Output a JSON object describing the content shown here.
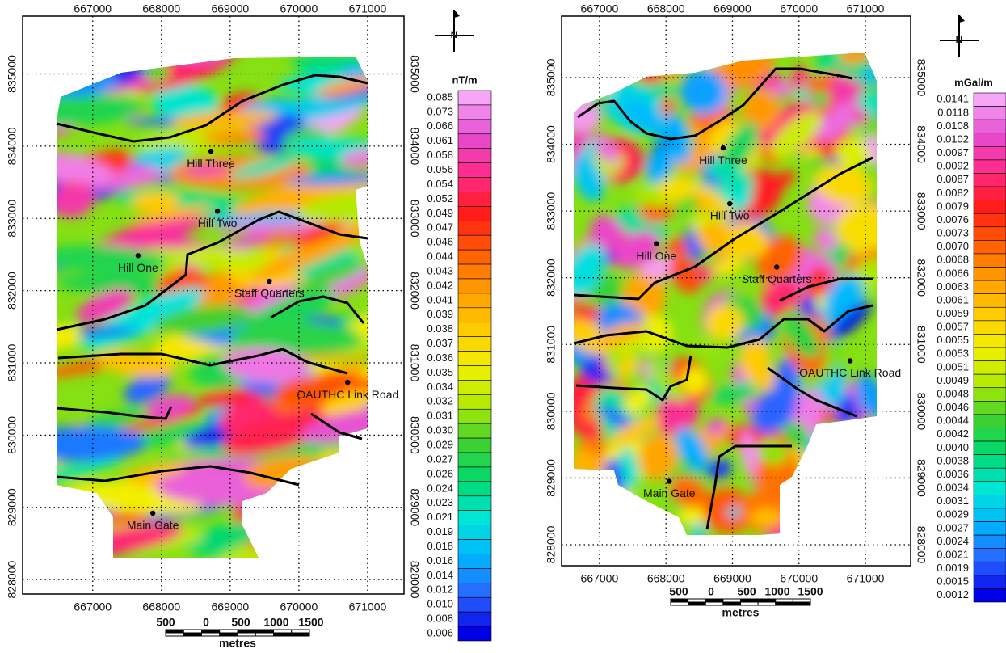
{
  "panels": [
    {
      "unit": "nT/m",
      "north_label": "N",
      "xlim": [
        665980,
        671530
      ],
      "ylim": [
        827800,
        835800
      ],
      "xticks": [
        667000,
        668000,
        669000,
        670000,
        671000
      ],
      "yticks": [
        828000,
        829000,
        830000,
        831000,
        832000,
        833000,
        834000,
        835000
      ],
      "legend_labels": [
        "0.085",
        "0.073",
        "0.066",
        "0.061",
        "0.058",
        "0.056",
        "0.054",
        "0.052",
        "0.049",
        "0.047",
        "0.046",
        "0.044",
        "0.043",
        "0.042",
        "0.041",
        "0.039",
        "0.038",
        "0.037",
        "0.036",
        "0.035",
        "0.034",
        "0.032",
        "0.031",
        "0.030",
        "0.029",
        "0.027",
        "0.026",
        "0.024",
        "0.023",
        "0.021",
        "0.019",
        "0.018",
        "0.016",
        "0.014",
        "0.012",
        "0.010",
        "0.008",
        "0.006"
      ],
      "places": [
        {
          "label": "Hill Three",
          "x": 668720,
          "y": 833930
        },
        {
          "label": "Hill Two",
          "x": 668815,
          "y": 833100
        },
        {
          "label": "Hill One",
          "x": 667660,
          "y": 832485
        },
        {
          "label": "Staff Quarters",
          "x": 669570,
          "y": 832130
        },
        {
          "label": "OAUTHC Link Road",
          "x": 670710,
          "y": 830730
        },
        {
          "label": "Main Gate",
          "x": 667875,
          "y": 828920
        }
      ],
      "scale_bar": {
        "labels": [
          500,
          0,
          500,
          1000,
          1500
        ],
        "unit": "metres"
      }
    },
    {
      "unit": "mGal/m",
      "north_label": "N",
      "xlim": [
        666430,
        671680
      ],
      "ylim": [
        827685,
        835920
      ],
      "xticks": [
        667000,
        668000,
        669000,
        670000,
        671000
      ],
      "yticks": [
        828000,
        829000,
        830000,
        831000,
        832000,
        833000,
        834000,
        835000
      ],
      "legend_labels": [
        "0.0141",
        "0.0118",
        "0.0108",
        "0.0102",
        "0.0097",
        "0.0092",
        "0.0087",
        "0.0082",
        "0.0079",
        "0.0076",
        "0.0073",
        "0.0070",
        "0.0068",
        "0.0066",
        "0.0063",
        "0.0061",
        "0.0059",
        "0.0057",
        "0.0055",
        "0.0053",
        "0.0051",
        "0.0049",
        "0.0048",
        "0.0046",
        "0.0044",
        "0.0042",
        "0.0040",
        "0.0038",
        "0.0036",
        "0.0034",
        "0.0031",
        "0.0029",
        "0.0027",
        "0.0024",
        "0.0021",
        "0.0019",
        "0.0015",
        "0.0012"
      ],
      "places": [
        {
          "label": "Hill Three",
          "x": 668860,
          "y": 833945
        },
        {
          "label": "Hill Two",
          "x": 668960,
          "y": 833110
        },
        {
          "label": "Hill One",
          "x": 667855,
          "y": 832510
        },
        {
          "label": "Staff Quarters",
          "x": 669665,
          "y": 832160
        },
        {
          "label": "OAUTHC Link Road",
          "x": 670770,
          "y": 830755
        },
        {
          "label": "Main Gate",
          "x": 668050,
          "y": 828950
        }
      ],
      "scale_bar": {
        "labels": [
          500,
          0,
          500,
          1000,
          1500
        ],
        "unit": "metres"
      }
    }
  ]
}
